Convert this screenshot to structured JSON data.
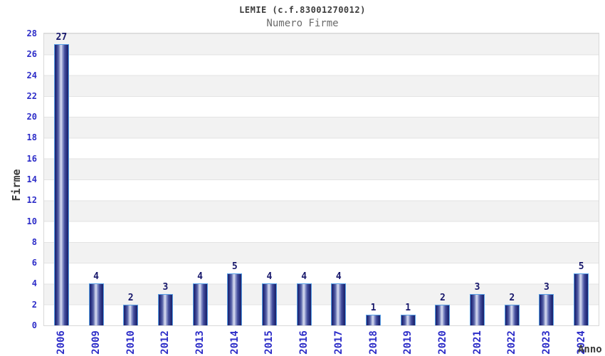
{
  "header": {
    "title": "LEMIE (c.f.83001270012)",
    "subtitle": "Numero Firme"
  },
  "chart_data": {
    "type": "bar",
    "title": "LEMIE (c.f.83001270012)",
    "subtitle": "Numero Firme",
    "xlabel": "Anno",
    "ylabel": "Firme",
    "categories": [
      "2006",
      "2009",
      "2010",
      "2012",
      "2013",
      "2014",
      "2015",
      "2016",
      "2017",
      "2018",
      "2019",
      "2020",
      "2021",
      "2022",
      "2023",
      "2024"
    ],
    "values": [
      27,
      4,
      2,
      3,
      4,
      5,
      4,
      4,
      4,
      1,
      1,
      2,
      3,
      2,
      3,
      5
    ],
    "ylim": [
      0,
      28
    ],
    "ytick_step": 2,
    "grid": true,
    "legend_position": "none",
    "colors": {
      "tick_label": "#2d2dc8",
      "value_label": "#17176b",
      "bar_edge": "#58a0e6",
      "bar_dark": "#1c246e",
      "bar_highlight": "#d8dcf0",
      "band_gray": "#f2f2f2",
      "band_white": "#ffffff",
      "grid_line": "#e3e3e3",
      "plot_border": "#d8d8d8",
      "title_color": "#3c3c3c",
      "subtitle_color": "#6b6b6b",
      "axis_title_color": "#3a3a3a"
    }
  }
}
